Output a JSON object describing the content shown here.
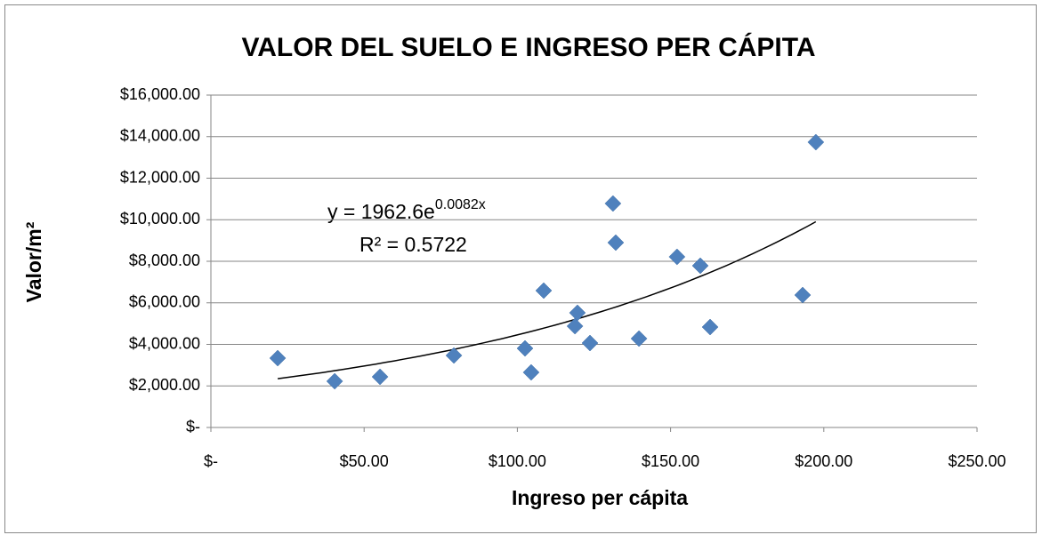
{
  "chart_data": {
    "type": "scatter",
    "title": "VALOR DEL SUELO E INGRESO PER CÁPITA",
    "xlabel": "Ingreso per cápita",
    "ylabel": "Valor/m²",
    "color": "#4f81bd",
    "grid": true,
    "x": [
      21.8,
      40.4,
      55.2,
      79.3,
      102.5,
      104.5,
      108.6,
      119.6,
      118.8,
      123.7,
      131.2,
      132.1,
      139.7,
      152.1,
      159.7,
      162.9,
      193.1,
      197.4
    ],
    "values": [
      3337,
      2225,
      2438,
      3465,
      3807,
      2652,
      6588,
      5519,
      4877,
      4064,
      10781,
      8898,
      4278,
      8214,
      7786,
      4834,
      6374,
      13733
    ],
    "xlim": [
      0,
      250
    ],
    "xticks": [
      {
        "value": 0,
        "label": "$-"
      },
      {
        "value": 50,
        "label": "$50.00"
      },
      {
        "value": 100,
        "label": "$100.00"
      },
      {
        "value": 150,
        "label": "$150.00"
      },
      {
        "value": 200,
        "label": "$200.00"
      },
      {
        "value": 250,
        "label": "$250.00"
      }
    ],
    "ylim": [
      0,
      16000
    ],
    "yticks": [
      {
        "value": 0,
        "label": "$-"
      },
      {
        "value": 2000,
        "label": "$2,000.00"
      },
      {
        "value": 4000,
        "label": "$4,000.00"
      },
      {
        "value": 6000,
        "label": "$6,000.00"
      },
      {
        "value": 8000,
        "label": "$8,000.00"
      },
      {
        "value": 10000,
        "label": "$10,000.00"
      },
      {
        "value": 12000,
        "label": "$12,000.00"
      },
      {
        "value": 14000,
        "label": "$14,000.00"
      },
      {
        "value": 16000,
        "label": "$16,000.00"
      }
    ],
    "trendline": {
      "a": 1962.6,
      "b": 0.0082,
      "equation": "y = 1962.6e",
      "exponent": "0.0082x",
      "r2": "R² = 0.5722"
    }
  }
}
